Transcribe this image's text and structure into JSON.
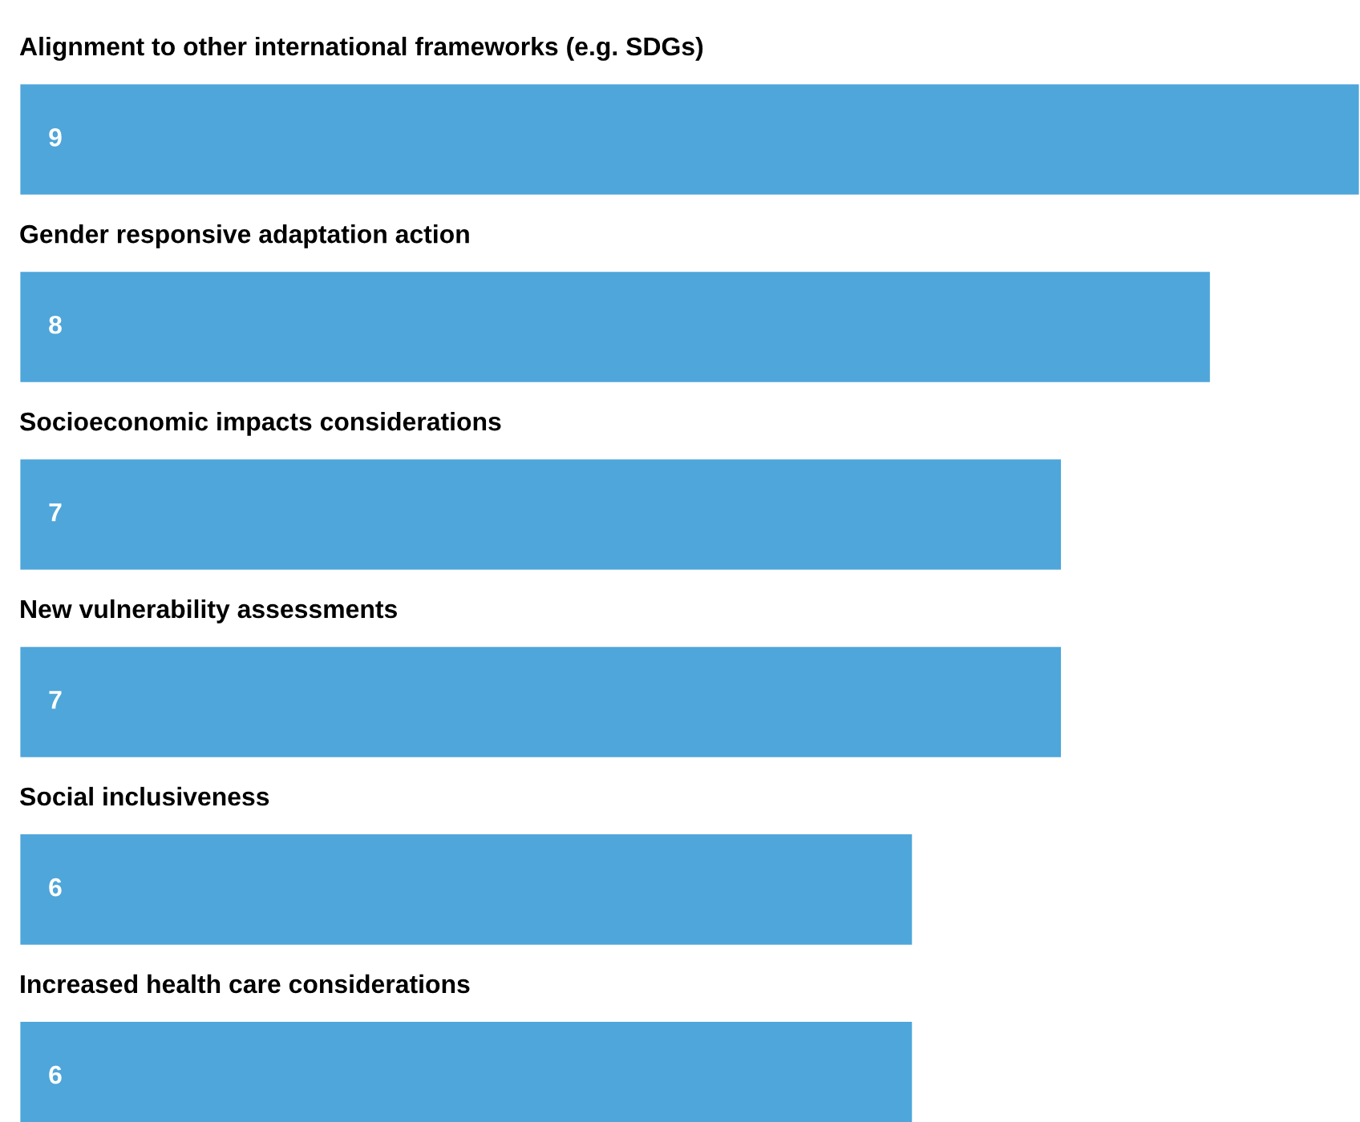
{
  "chart_data": {
    "type": "bar",
    "orientation": "horizontal",
    "categories": [
      "Alignment to other international frameworks (e.g. SDGs)",
      "Gender responsive adaptation action",
      "Socioeconomic impacts considerations",
      "New vulnerability assessments",
      "Social inclusiveness",
      "Increased health care considerations"
    ],
    "values": [
      9,
      8,
      7,
      7,
      6,
      6
    ],
    "color": "#4ea6da",
    "data_labels": true
  }
}
